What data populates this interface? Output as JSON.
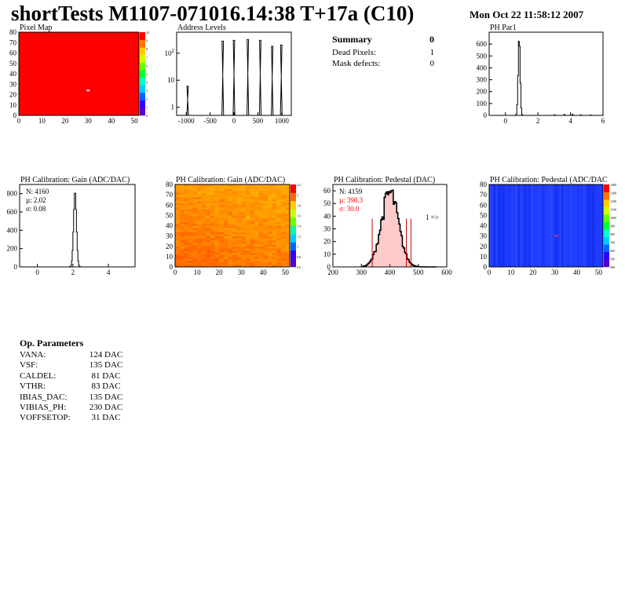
{
  "header": {
    "title": "shortTests M1107-071016.14:38 T+17a (C10)",
    "date": "Mon Oct 22 11:58:12 2007"
  },
  "summary": {
    "title": "Summary",
    "title_value": "0",
    "rows": [
      {
        "label": "Dead Pixels:",
        "value": "1"
      },
      {
        "label": "Mask defects:",
        "value": "0"
      }
    ]
  },
  "op_parameters": {
    "title": "Op. Parameters",
    "rows": [
      {
        "label": "VANA:",
        "value": "124 DAC"
      },
      {
        "label": "VSF:",
        "value": "135 DAC"
      },
      {
        "label": "CALDEL:",
        "value": "81 DAC"
      },
      {
        "label": "VTHR:",
        "value": "83 DAC"
      },
      {
        "label": "IBIAS_DAC:",
        "value": "135 DAC"
      },
      {
        "label": "VIBIAS_PH:",
        "value": "230 DAC"
      },
      {
        "label": "VOFFSETOP:",
        "value": "31 DAC"
      }
    ]
  },
  "colors": {
    "red_map": "#ff0000",
    "gain_fill": "#ff6a00",
    "pedestal_map": "#1f3cff",
    "stat_red": "#ff0000",
    "pedestal_hist_fill": "#ff6666"
  },
  "chart_data": [
    {
      "type": "heatmap",
      "title": "Pixel Map",
      "xlim": [
        0,
        52
      ],
      "ylim": [
        0,
        80
      ],
      "x_ticks": [
        "0",
        "10",
        "20",
        "30",
        "40",
        "50"
      ],
      "y_ticks": [
        "0",
        "10",
        "20",
        "30",
        "40",
        "50",
        "60",
        "70",
        "80"
      ],
      "uniform_value": 10,
      "anomalies": [
        {
          "x": 30,
          "y": 24,
          "value": 0
        }
      ],
      "colorbar_ticks": [
        "0",
        "1",
        "2",
        "3",
        "4",
        "5",
        "6",
        "7",
        "8",
        "9",
        "10"
      ]
    },
    {
      "type": "bar",
      "title": "Address Levels",
      "log_y": true,
      "xlim": [
        -1200,
        1200
      ],
      "ylim": [
        0.5,
        600
      ],
      "x_ticks": [
        "-1000",
        "-500",
        "0",
        "500",
        "1000"
      ],
      "y_ticks": [
        "1",
        "10",
        "10^2"
      ],
      "peaks": [
        {
          "x": -970,
          "height": 6
        },
        {
          "x": -235,
          "height": 280
        },
        {
          "x": 0,
          "height": 300
        },
        {
          "x": 290,
          "height": 320
        },
        {
          "x": 550,
          "height": 300
        },
        {
          "x": 800,
          "height": 180
        },
        {
          "x": 990,
          "height": 200
        }
      ]
    },
    {
      "type": "bar",
      "title": "PH Par1",
      "xlim": [
        -1,
        6
      ],
      "ylim": [
        0,
        700
      ],
      "x_ticks": [
        "0",
        "2",
        "4",
        "6"
      ],
      "y_ticks": [
        "0",
        "100",
        "200",
        "300",
        "400",
        "500",
        "600"
      ],
      "peak": {
        "x": 0.82,
        "height": 660,
        "sigma": 0.06
      },
      "tail": [
        {
          "x": 3,
          "height": 6
        },
        {
          "x": 3.6,
          "height": 8
        },
        {
          "x": 4.1,
          "height": 10
        },
        {
          "x": 4.6,
          "height": 5
        },
        {
          "x": 5.2,
          "height": 4
        }
      ]
    },
    {
      "type": "bar",
      "title": "PH Calibration: Gain (ADC/DAC)",
      "xlim": [
        -1,
        5.5
      ],
      "ylim": [
        0,
        900
      ],
      "x_ticks": [
        "0",
        "2",
        "4"
      ],
      "y_ticks": [
        "0",
        "200",
        "400",
        "600",
        "800"
      ],
      "stats": {
        "entries": "N: 4160",
        "mean": "µ: 2.02",
        "rms": "σ: 0.08"
      },
      "peak": {
        "x": 2.1,
        "height": 830,
        "sigma": 0.08
      }
    },
    {
      "type": "heatmap",
      "title": "PH Calibration: Gain (ADC/DAC)",
      "xlim": [
        0,
        52
      ],
      "ylim": [
        0,
        80
      ],
      "x_ticks": [
        "0",
        "10",
        "20",
        "30",
        "40",
        "50"
      ],
      "y_ticks": [
        "0",
        "10",
        "20",
        "30",
        "40",
        "50",
        "60",
        "70",
        "80"
      ],
      "colorbar_ticks": [
        "0.6",
        "0.8",
        "1",
        "1.2",
        "1.4",
        "1.6",
        "1.8",
        "2",
        "2.2"
      ]
    },
    {
      "type": "bar",
      "title": "PH Calibration: Pedestal (DAC)",
      "xlim": [
        200,
        600
      ],
      "ylim": [
        0,
        65
      ],
      "x_ticks": [
        "200",
        "300",
        "400",
        "500",
        "600"
      ],
      "y_ticks": [
        "0",
        "10",
        "20",
        "30",
        "40",
        "50",
        "60"
      ],
      "stats": {
        "entries": "N: 4159",
        "mean": "µ: 398.3",
        "rms": "σ: 30.0"
      },
      "peak": {
        "x": 398.3,
        "height": 58,
        "sigma": 30.0
      },
      "markers": [
        {
          "x": 338
        },
        {
          "x": 458
        },
        {
          "x": 474
        }
      ],
      "annotation": "1 =>"
    },
    {
      "type": "heatmap",
      "title": "PH Calibration: Pedestal (ADC/DAC",
      "xlim": [
        0,
        52
      ],
      "ylim": [
        0,
        80
      ],
      "x_ticks": [
        "0",
        "10",
        "20",
        "30",
        "40",
        "50"
      ],
      "y_ticks": [
        "0",
        "10",
        "20",
        "30",
        "40",
        "50",
        "60",
        "70",
        "80"
      ],
      "colorbar_ticks": [
        "400",
        "500",
        "600",
        "700",
        "800",
        "900",
        "1000",
        "1100",
        "1200",
        "1300",
        "1400"
      ]
    }
  ]
}
